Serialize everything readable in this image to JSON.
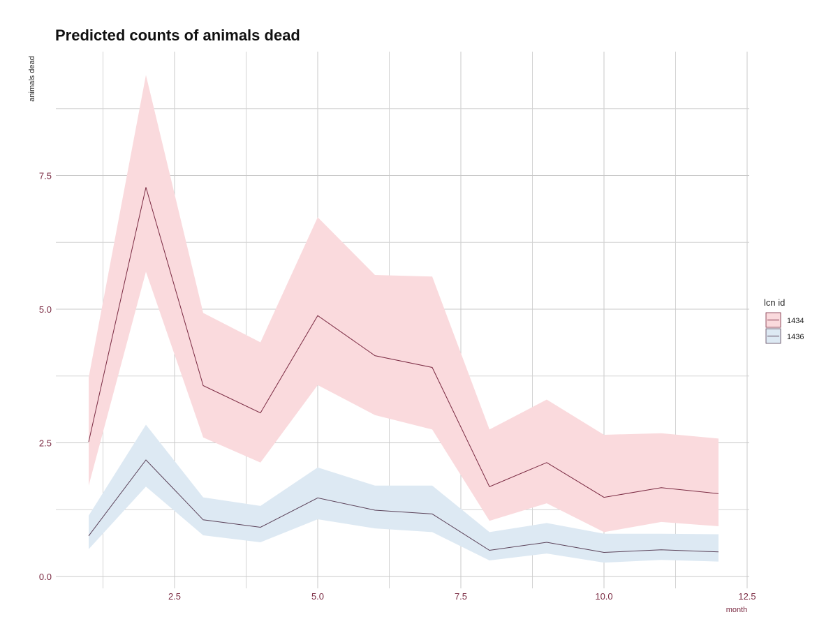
{
  "chart_data": {
    "type": "line",
    "title": "Predicted counts of animals dead",
    "xlabel": "month",
    "ylabel": "animals dead",
    "xlim": [
      0.5,
      12.5
    ],
    "ylim": [
      0,
      9.6
    ],
    "x_ticks": [
      2.5,
      5.0,
      7.5,
      10.0,
      12.5
    ],
    "x_tick_labels": [
      "2.5",
      "5.0",
      "7.5",
      "10.0",
      "12.5"
    ],
    "y_ticks": [
      0,
      2.5,
      5.0,
      7.5
    ],
    "y_tick_labels": [
      "0.0",
      "2.5",
      "5.0",
      "7.5"
    ],
    "grid": true,
    "legend": {
      "title": "lcn id",
      "position": "right"
    },
    "x": [
      1,
      2,
      3,
      4,
      5,
      6,
      7,
      8,
      9,
      10,
      11,
      12
    ],
    "series": [
      {
        "name": "1434",
        "values": [
          2.52,
          7.28,
          3.57,
          3.06,
          4.88,
          4.13,
          3.91,
          1.68,
          2.13,
          1.48,
          1.66,
          1.55
        ],
        "lower": [
          1.7,
          5.7,
          2.6,
          2.13,
          3.58,
          3.02,
          2.75,
          1.04,
          1.37,
          0.83,
          1.02,
          0.94
        ],
        "upper": [
          3.72,
          9.38,
          4.93,
          4.38,
          6.72,
          5.64,
          5.61,
          2.75,
          3.31,
          2.65,
          2.68,
          2.58
        ],
        "line_color": "#7a2a42",
        "band_color": "#fadadd"
      },
      {
        "name": "1436",
        "values": [
          0.76,
          2.18,
          1.06,
          0.92,
          1.47,
          1.24,
          1.17,
          0.49,
          0.64,
          0.45,
          0.5,
          0.46
        ],
        "lower": [
          0.51,
          1.68,
          0.77,
          0.64,
          1.07,
          0.9,
          0.83,
          0.3,
          0.43,
          0.26,
          0.31,
          0.28
        ],
        "upper": [
          1.14,
          2.84,
          1.48,
          1.32,
          2.04,
          1.7,
          1.7,
          0.83,
          1.0,
          0.8,
          0.8,
          0.79
        ],
        "line_color": "#5a4158",
        "band_color": "#dde9f3"
      }
    ],
    "colors": {
      "tick_label": "#7a2a42",
      "axis_title": "#222222"
    }
  }
}
